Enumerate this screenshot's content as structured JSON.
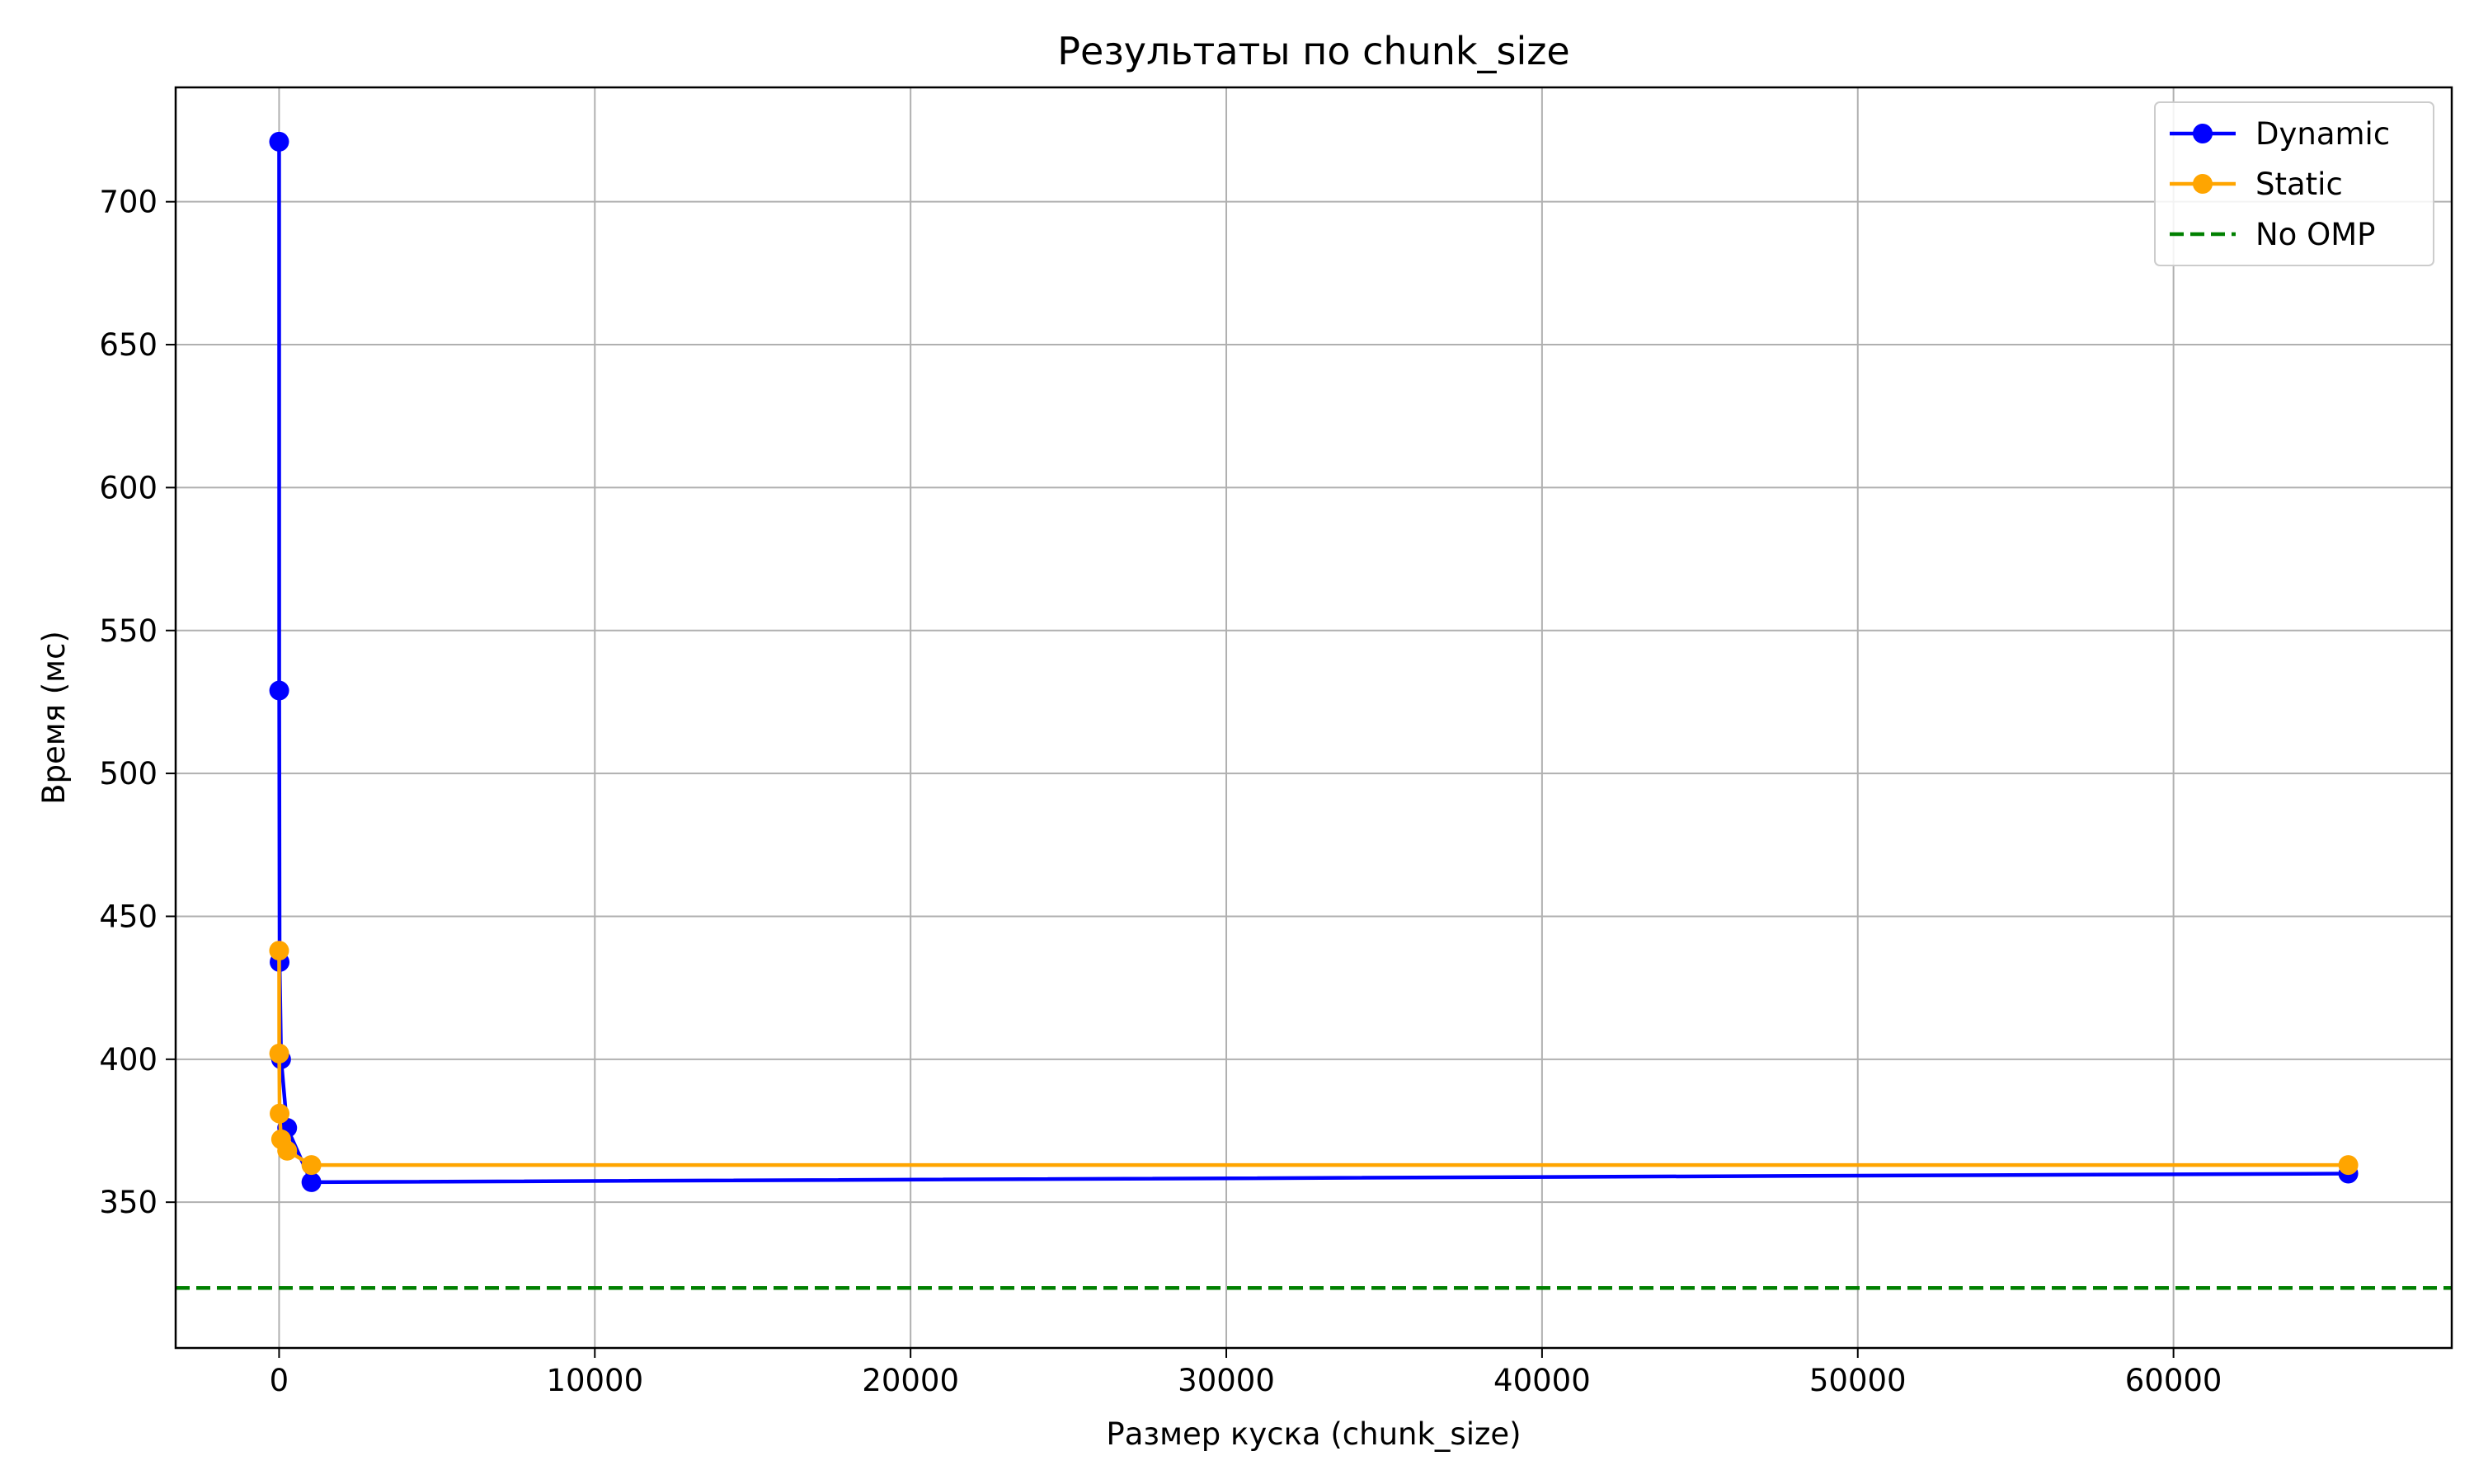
{
  "chart_data": {
    "type": "line",
    "title": "Результаты по chunk_size",
    "xlabel": "Размер куска (chunk_size)",
    "ylabel": "Время (мс)",
    "xlim": [
      -3276,
      68812
    ],
    "ylim": [
      299,
      740
    ],
    "x_ticks": [
      0,
      10000,
      20000,
      30000,
      40000,
      50000,
      60000
    ],
    "y_ticks": [
      350,
      400,
      450,
      500,
      550,
      600,
      650,
      700
    ],
    "grid": true,
    "legend_position": "upper right",
    "series": [
      {
        "name": "Dynamic",
        "color": "#0000ff",
        "marker": "circle",
        "line_style": "solid",
        "x": [
          1,
          4,
          16,
          64,
          256,
          1024,
          65536
        ],
        "y": [
          721,
          529,
          434,
          400,
          376,
          357,
          360
        ]
      },
      {
        "name": "Static",
        "color": "#ffa500",
        "marker": "circle",
        "line_style": "solid",
        "x": [
          1,
          4,
          16,
          64,
          256,
          1024,
          65536
        ],
        "y": [
          438,
          402,
          381,
          372,
          368,
          363,
          363
        ]
      },
      {
        "name": "No OMP",
        "color": "#008000",
        "marker": "none",
        "line_style": "dashed",
        "y_constant": 320
      }
    ]
  }
}
